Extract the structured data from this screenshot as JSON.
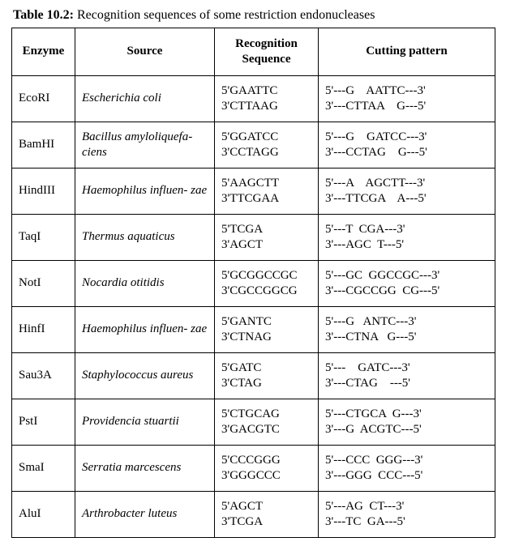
{
  "caption_label": "Table 10.2:",
  "caption_text": " Recognition sequences of some restriction endonucleases",
  "headers": {
    "enzyme": "Enzyme",
    "source": "Source",
    "sequence": "Recognition Sequence",
    "pattern": "Cutting pattern"
  },
  "rows": [
    {
      "enzyme": "EcoRI",
      "source": "Escherichia coli",
      "seq": "5'GAATTC\n3'CTTAAG",
      "cut": "5'---G    AATTC---3'\n3'---CTTAA    G---5'"
    },
    {
      "enzyme": "BamHI",
      "source": "Bacillus amyloliquefa-\nciens",
      "seq": "5'GGATCC\n3'CCTAGG",
      "cut": "5'---G    GATCC---3'\n3'---CCTAG    G---5'"
    },
    {
      "enzyme": "HindIII",
      "source": "Haemophilus influen-\nzae",
      "seq": "5'AAGCTT\n3'TTCGAA",
      "cut": "5'---A    AGCTT---3'\n3'---TTCGA    A---5'"
    },
    {
      "enzyme": "TaqI",
      "source": "Thermus aquaticus",
      "seq": "5'TCGA\n3'AGCT",
      "cut": "5'---T  CGA---3'\n3'---AGC  T---5'"
    },
    {
      "enzyme": "NotI",
      "source": "Nocardia otitidis",
      "seq": "5'GCGGCCGC\n3'CGCCGGCG",
      "cut": "5'---GC  GGCCGC---3'\n3'---CGCCGG  CG---5'"
    },
    {
      "enzyme": "HinfI",
      "source": "Haemophilus influen-\nzae",
      "seq": "5'GANTC\n3'CTNAG",
      "cut": "5'---G   ANTC---3'\n3'---CTNA   G---5'"
    },
    {
      "enzyme": "Sau3A",
      "source": "Staphylococcus aureus",
      "seq": "5'GATC\n3'CTAG",
      "cut": "5'---    GATC---3'\n3'---CTAG    ---5'"
    },
    {
      "enzyme": "PstI",
      "source": "Providencia stuartii",
      "seq": "5'CTGCAG\n3'GACGTC",
      "cut": "5'---CTGCA  G---3'\n3'---G  ACGTC---5'"
    },
    {
      "enzyme": "SmaI",
      "source": "Serratia marcescens",
      "seq": "5'CCCGGG\n3'GGGCCC",
      "cut": "5'---CCC  GGG---3'\n3'---GGG  CCC---5'"
    },
    {
      "enzyme": "AluI",
      "source": "Arthrobacter luteus",
      "seq": "5'AGCT\n3'TCGA",
      "cut": "5'---AG  CT---3'\n3'---TC  GA---5'"
    }
  ]
}
